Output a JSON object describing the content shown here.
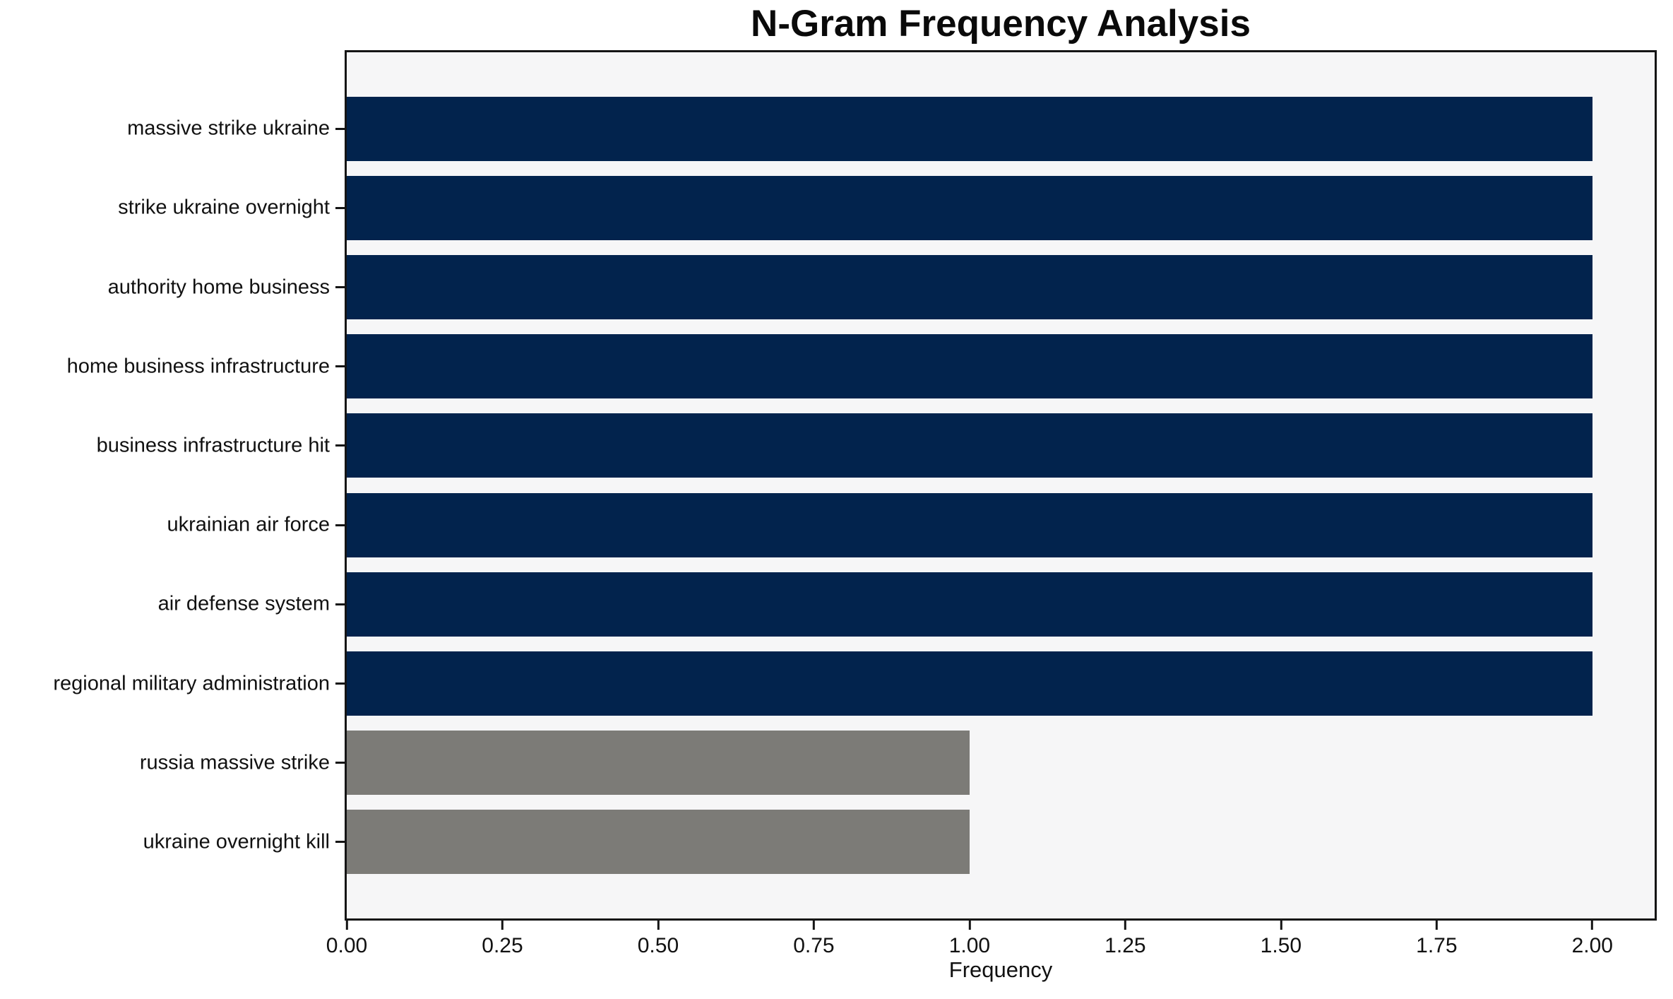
{
  "figure": {
    "title": "N-Gram Frequency Analysis"
  },
  "colors": {
    "figure_background": "#FFFFFF",
    "plot_background": "#F6F6F7",
    "axis": "#151515",
    "navy_bar": "#02234D",
    "gray_bar": "#7C7B77",
    "text": "#111111"
  },
  "chart_data": {
    "type": "bar",
    "orientation": "horizontal",
    "title": "N-Gram Frequency Analysis",
    "xlabel": "Frequency",
    "ylabel": "",
    "categories": [
      "massive strike ukraine",
      "strike ukraine overnight",
      "authority home business",
      "home business infrastructure",
      "business infrastructure hit",
      "ukrainian air force",
      "air defense system",
      "regional military administration",
      "russia massive strike",
      "ukraine overnight kill"
    ],
    "values": [
      2,
      2,
      2,
      2,
      2,
      2,
      2,
      2,
      1,
      1
    ],
    "bar_colors": [
      "#02234D",
      "#02234D",
      "#02234D",
      "#02234D",
      "#02234D",
      "#02234D",
      "#02234D",
      "#02234D",
      "#7C7B77",
      "#7C7B77"
    ],
    "xlim": [
      0,
      2.1
    ],
    "xticks": {
      "values": [
        0,
        0.25,
        0.5,
        0.75,
        1.0,
        1.25,
        1.5,
        1.75,
        2.0
      ],
      "labels": [
        "0.00",
        "0.25",
        "0.50",
        "0.75",
        "1.00",
        "1.25",
        "1.50",
        "1.75",
        "2.00"
      ]
    },
    "grid": false,
    "legend_position": "none"
  }
}
